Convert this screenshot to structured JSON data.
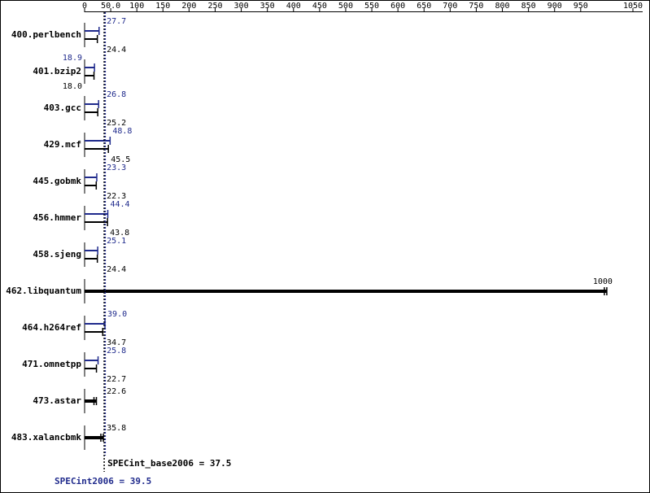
{
  "chart_data": {
    "type": "bar",
    "categories": [
      "400.perlbench",
      "401.bzip2",
      "403.gcc",
      "429.mcf",
      "445.gobmk",
      "456.hmmer",
      "458.sjeng",
      "462.libquantum",
      "464.h264ref",
      "471.omnetpp",
      "473.astar",
      "483.xalancbmk"
    ],
    "series": [
      {
        "color": "#1f2a8c",
        "values": [
          27.7,
          18.9,
          26.8,
          48.8,
          23.3,
          44.4,
          25.1,
          null,
          39.0,
          25.8,
          null,
          null
        ],
        "value_labels": [
          "27.7",
          "18.9",
          "26.8",
          "48.8",
          "23.3",
          "44.4",
          "25.1",
          null,
          "39.0",
          "25.8",
          null,
          null
        ]
      },
      {
        "color": "#000000",
        "values": [
          24.4,
          18.0,
          25.2,
          45.5,
          22.3,
          43.8,
          24.4,
          1000,
          34.7,
          22.7,
          22.6,
          35.8
        ],
        "value_labels": [
          "24.4",
          "18.0",
          "25.2",
          "45.5",
          "22.3",
          "43.8",
          "24.4",
          "1000",
          "34.7",
          "22.7",
          "22.6",
          "35.8"
        ]
      }
    ],
    "xlim": [
      0,
      1050
    ],
    "xticks": [
      0,
      {
        "value": 50,
        "label": "50.0"
      },
      100,
      150,
      200,
      250,
      300,
      350,
      400,
      450,
      500,
      550,
      600,
      650,
      700,
      750,
      800,
      850,
      900,
      950,
      1050
    ],
    "base_metric": {
      "label": "SPECint_base2006 = 37.5",
      "value": 37.5,
      "color": "#000000"
    },
    "peak_metric": {
      "label": "SPECint2006 = 39.5",
      "value": 39.5,
      "color": "#1f2a8c"
    }
  }
}
